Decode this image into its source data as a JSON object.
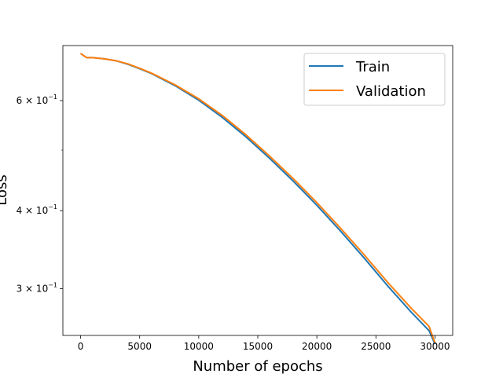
{
  "chart_data": {
    "type": "line",
    "title": "",
    "xlabel": "Number of epochs",
    "ylabel": "Loss",
    "xscale": "linear",
    "yscale": "log",
    "xlim": [
      -1500,
      31500
    ],
    "ylim": [
      0.2525,
      0.735
    ],
    "grid": false,
    "legend_position": "top-right",
    "x_ticks": [
      {
        "value": 0,
        "label": "0"
      },
      {
        "value": 5000,
        "label": "5000"
      },
      {
        "value": 10000,
        "label": "10000"
      },
      {
        "value": 15000,
        "label": "15000"
      },
      {
        "value": 20000,
        "label": "20000"
      },
      {
        "value": 25000,
        "label": "25000"
      },
      {
        "value": 30000,
        "label": "30000"
      }
    ],
    "y_ticks": [
      {
        "value": 0.3,
        "mantissa": "3",
        "base": "10",
        "exponent": "−1"
      },
      {
        "value": 0.4,
        "mantissa": "4",
        "base": "10",
        "exponent": "−1"
      },
      {
        "value": 0.6,
        "mantissa": "6",
        "base": "10",
        "exponent": "−1"
      }
    ],
    "y_minor_ticks": [
      0.5
    ],
    "series": [
      {
        "name": "Train",
        "color": "#1f77b4",
        "x": [
          0,
          500,
          1000,
          2000,
          3000,
          4000,
          5000,
          6000,
          8000,
          10000,
          12000,
          14000,
          16000,
          18000,
          20000,
          22000,
          24000,
          26000,
          28000,
          29500,
          30000
        ],
        "y": [
          0.714,
          0.703,
          0.703,
          0.7,
          0.695,
          0.686,
          0.675,
          0.663,
          0.634,
          0.601,
          0.564,
          0.525,
          0.485,
          0.446,
          0.408,
          0.371,
          0.336,
          0.303,
          0.275,
          0.257,
          0.2445
        ]
      },
      {
        "name": "Validation",
        "color": "#ff7f0e",
        "x": [
          0,
          500,
          1000,
          2000,
          3000,
          4000,
          5000,
          6000,
          8000,
          10000,
          12000,
          14000,
          16000,
          18000,
          20000,
          22000,
          24000,
          26000,
          28000,
          29500,
          30000
        ],
        "y": [
          0.714,
          0.703,
          0.703,
          0.7,
          0.695,
          0.687,
          0.676,
          0.664,
          0.636,
          0.604,
          0.568,
          0.529,
          0.489,
          0.45,
          0.412,
          0.375,
          0.34,
          0.307,
          0.279,
          0.261,
          0.2455
        ]
      }
    ]
  }
}
